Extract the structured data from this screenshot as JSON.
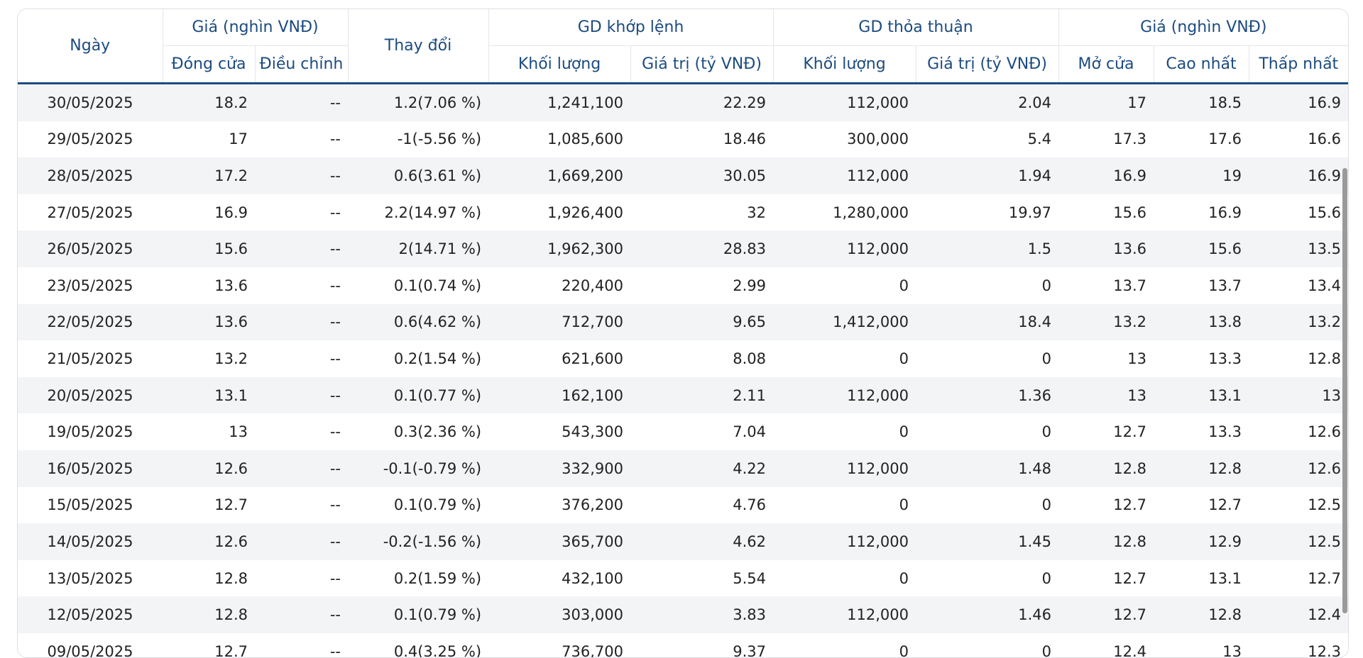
{
  "headers": {
    "date": "Ngày",
    "price_group": "Giá (nghìn VNĐ)",
    "close": "Đóng cửa",
    "adjusted": "Điều chỉnh",
    "change": "Thay đổi",
    "matched_group": "GD khớp lệnh",
    "matched_volume": "Khối lượng",
    "matched_value": "Giá trị (tỷ VNĐ)",
    "negotiated_group": "GD thỏa thuận",
    "negotiated_volume": "Khối lượng",
    "negotiated_value": "Giá trị (tỷ VNĐ)",
    "price_group2": "Giá (nghìn VNĐ)",
    "open": "Mở cửa",
    "high": "Cao nhất",
    "low": "Thấp nhất"
  },
  "colors": {
    "header_text": "#1c4b80",
    "up": "#1fa51f",
    "down": "#d4141c",
    "stripe": "#f3f4f6"
  },
  "rows": [
    {
      "date": "30/05/2025",
      "close": "18.2",
      "adjusted": "--",
      "change": "1.2(7.06 %)",
      "direction": "up",
      "m_vol": "1,241,100",
      "m_val": "22.29",
      "n_vol": "112,000",
      "n_val": "2.04",
      "open": "17",
      "high": "18.5",
      "low": "16.9"
    },
    {
      "date": "29/05/2025",
      "close": "17",
      "adjusted": "--",
      "change": "-1(-5.56 %)",
      "direction": "down",
      "m_vol": "1,085,600",
      "m_val": "18.46",
      "n_vol": "300,000",
      "n_val": "5.4",
      "open": "17.3",
      "high": "17.6",
      "low": "16.6"
    },
    {
      "date": "28/05/2025",
      "close": "17.2",
      "adjusted": "--",
      "change": "0.6(3.61 %)",
      "direction": "up",
      "m_vol": "1,669,200",
      "m_val": "30.05",
      "n_vol": "112,000",
      "n_val": "1.94",
      "open": "16.9",
      "high": "19",
      "low": "16.9"
    },
    {
      "date": "27/05/2025",
      "close": "16.9",
      "adjusted": "--",
      "change": "2.2(14.97 %)",
      "direction": "up",
      "m_vol": "1,926,400",
      "m_val": "32",
      "n_vol": "1,280,000",
      "n_val": "19.97",
      "open": "15.6",
      "high": "16.9",
      "low": "15.6"
    },
    {
      "date": "26/05/2025",
      "close": "15.6",
      "adjusted": "--",
      "change": "2(14.71 %)",
      "direction": "up",
      "m_vol": "1,962,300",
      "m_val": "28.83",
      "n_vol": "112,000",
      "n_val": "1.5",
      "open": "13.6",
      "high": "15.6",
      "low": "13.5"
    },
    {
      "date": "23/05/2025",
      "close": "13.6",
      "adjusted": "--",
      "change": "0.1(0.74 %)",
      "direction": "up",
      "m_vol": "220,400",
      "m_val": "2.99",
      "n_vol": "0",
      "n_val": "0",
      "open": "13.7",
      "high": "13.7",
      "low": "13.4"
    },
    {
      "date": "22/05/2025",
      "close": "13.6",
      "adjusted": "--",
      "change": "0.6(4.62 %)",
      "direction": "up",
      "m_vol": "712,700",
      "m_val": "9.65",
      "n_vol": "1,412,000",
      "n_val": "18.4",
      "open": "13.2",
      "high": "13.8",
      "low": "13.2"
    },
    {
      "date": "21/05/2025",
      "close": "13.2",
      "adjusted": "--",
      "change": "0.2(1.54 %)",
      "direction": "up",
      "m_vol": "621,600",
      "m_val": "8.08",
      "n_vol": "0",
      "n_val": "0",
      "open": "13",
      "high": "13.3",
      "low": "12.8"
    },
    {
      "date": "20/05/2025",
      "close": "13.1",
      "adjusted": "--",
      "change": "0.1(0.77 %)",
      "direction": "up",
      "m_vol": "162,100",
      "m_val": "2.11",
      "n_vol": "112,000",
      "n_val": "1.36",
      "open": "13",
      "high": "13.1",
      "low": "13"
    },
    {
      "date": "19/05/2025",
      "close": "13",
      "adjusted": "--",
      "change": "0.3(2.36 %)",
      "direction": "up",
      "m_vol": "543,300",
      "m_val": "7.04",
      "n_vol": "0",
      "n_val": "0",
      "open": "12.7",
      "high": "13.3",
      "low": "12.6"
    },
    {
      "date": "16/05/2025",
      "close": "12.6",
      "adjusted": "--",
      "change": "-0.1(-0.79 %)",
      "direction": "down",
      "m_vol": "332,900",
      "m_val": "4.22",
      "n_vol": "112,000",
      "n_val": "1.48",
      "open": "12.8",
      "high": "12.8",
      "low": "12.6"
    },
    {
      "date": "15/05/2025",
      "close": "12.7",
      "adjusted": "--",
      "change": "0.1(0.79 %)",
      "direction": "up",
      "m_vol": "376,200",
      "m_val": "4.76",
      "n_vol": "0",
      "n_val": "0",
      "open": "12.7",
      "high": "12.7",
      "low": "12.5"
    },
    {
      "date": "14/05/2025",
      "close": "12.6",
      "adjusted": "--",
      "change": "-0.2(-1.56 %)",
      "direction": "down",
      "m_vol": "365,700",
      "m_val": "4.62",
      "n_vol": "112,000",
      "n_val": "1.45",
      "open": "12.8",
      "high": "12.9",
      "low": "12.5"
    },
    {
      "date": "13/05/2025",
      "close": "12.8",
      "adjusted": "--",
      "change": "0.2(1.59 %)",
      "direction": "up",
      "m_vol": "432,100",
      "m_val": "5.54",
      "n_vol": "0",
      "n_val": "0",
      "open": "12.7",
      "high": "13.1",
      "low": "12.7"
    },
    {
      "date": "12/05/2025",
      "close": "12.8",
      "adjusted": "--",
      "change": "0.1(0.79 %)",
      "direction": "up",
      "m_vol": "303,000",
      "m_val": "3.83",
      "n_vol": "112,000",
      "n_val": "1.46",
      "open": "12.7",
      "high": "12.8",
      "low": "12.4"
    },
    {
      "date": "09/05/2025",
      "close": "12.7",
      "adjusted": "--",
      "change": "0.4(3.25 %)",
      "direction": "up",
      "m_vol": "736,700",
      "m_val": "9.37",
      "n_vol": "0",
      "n_val": "0",
      "open": "12.4",
      "high": "13",
      "low": "12.3"
    }
  ]
}
